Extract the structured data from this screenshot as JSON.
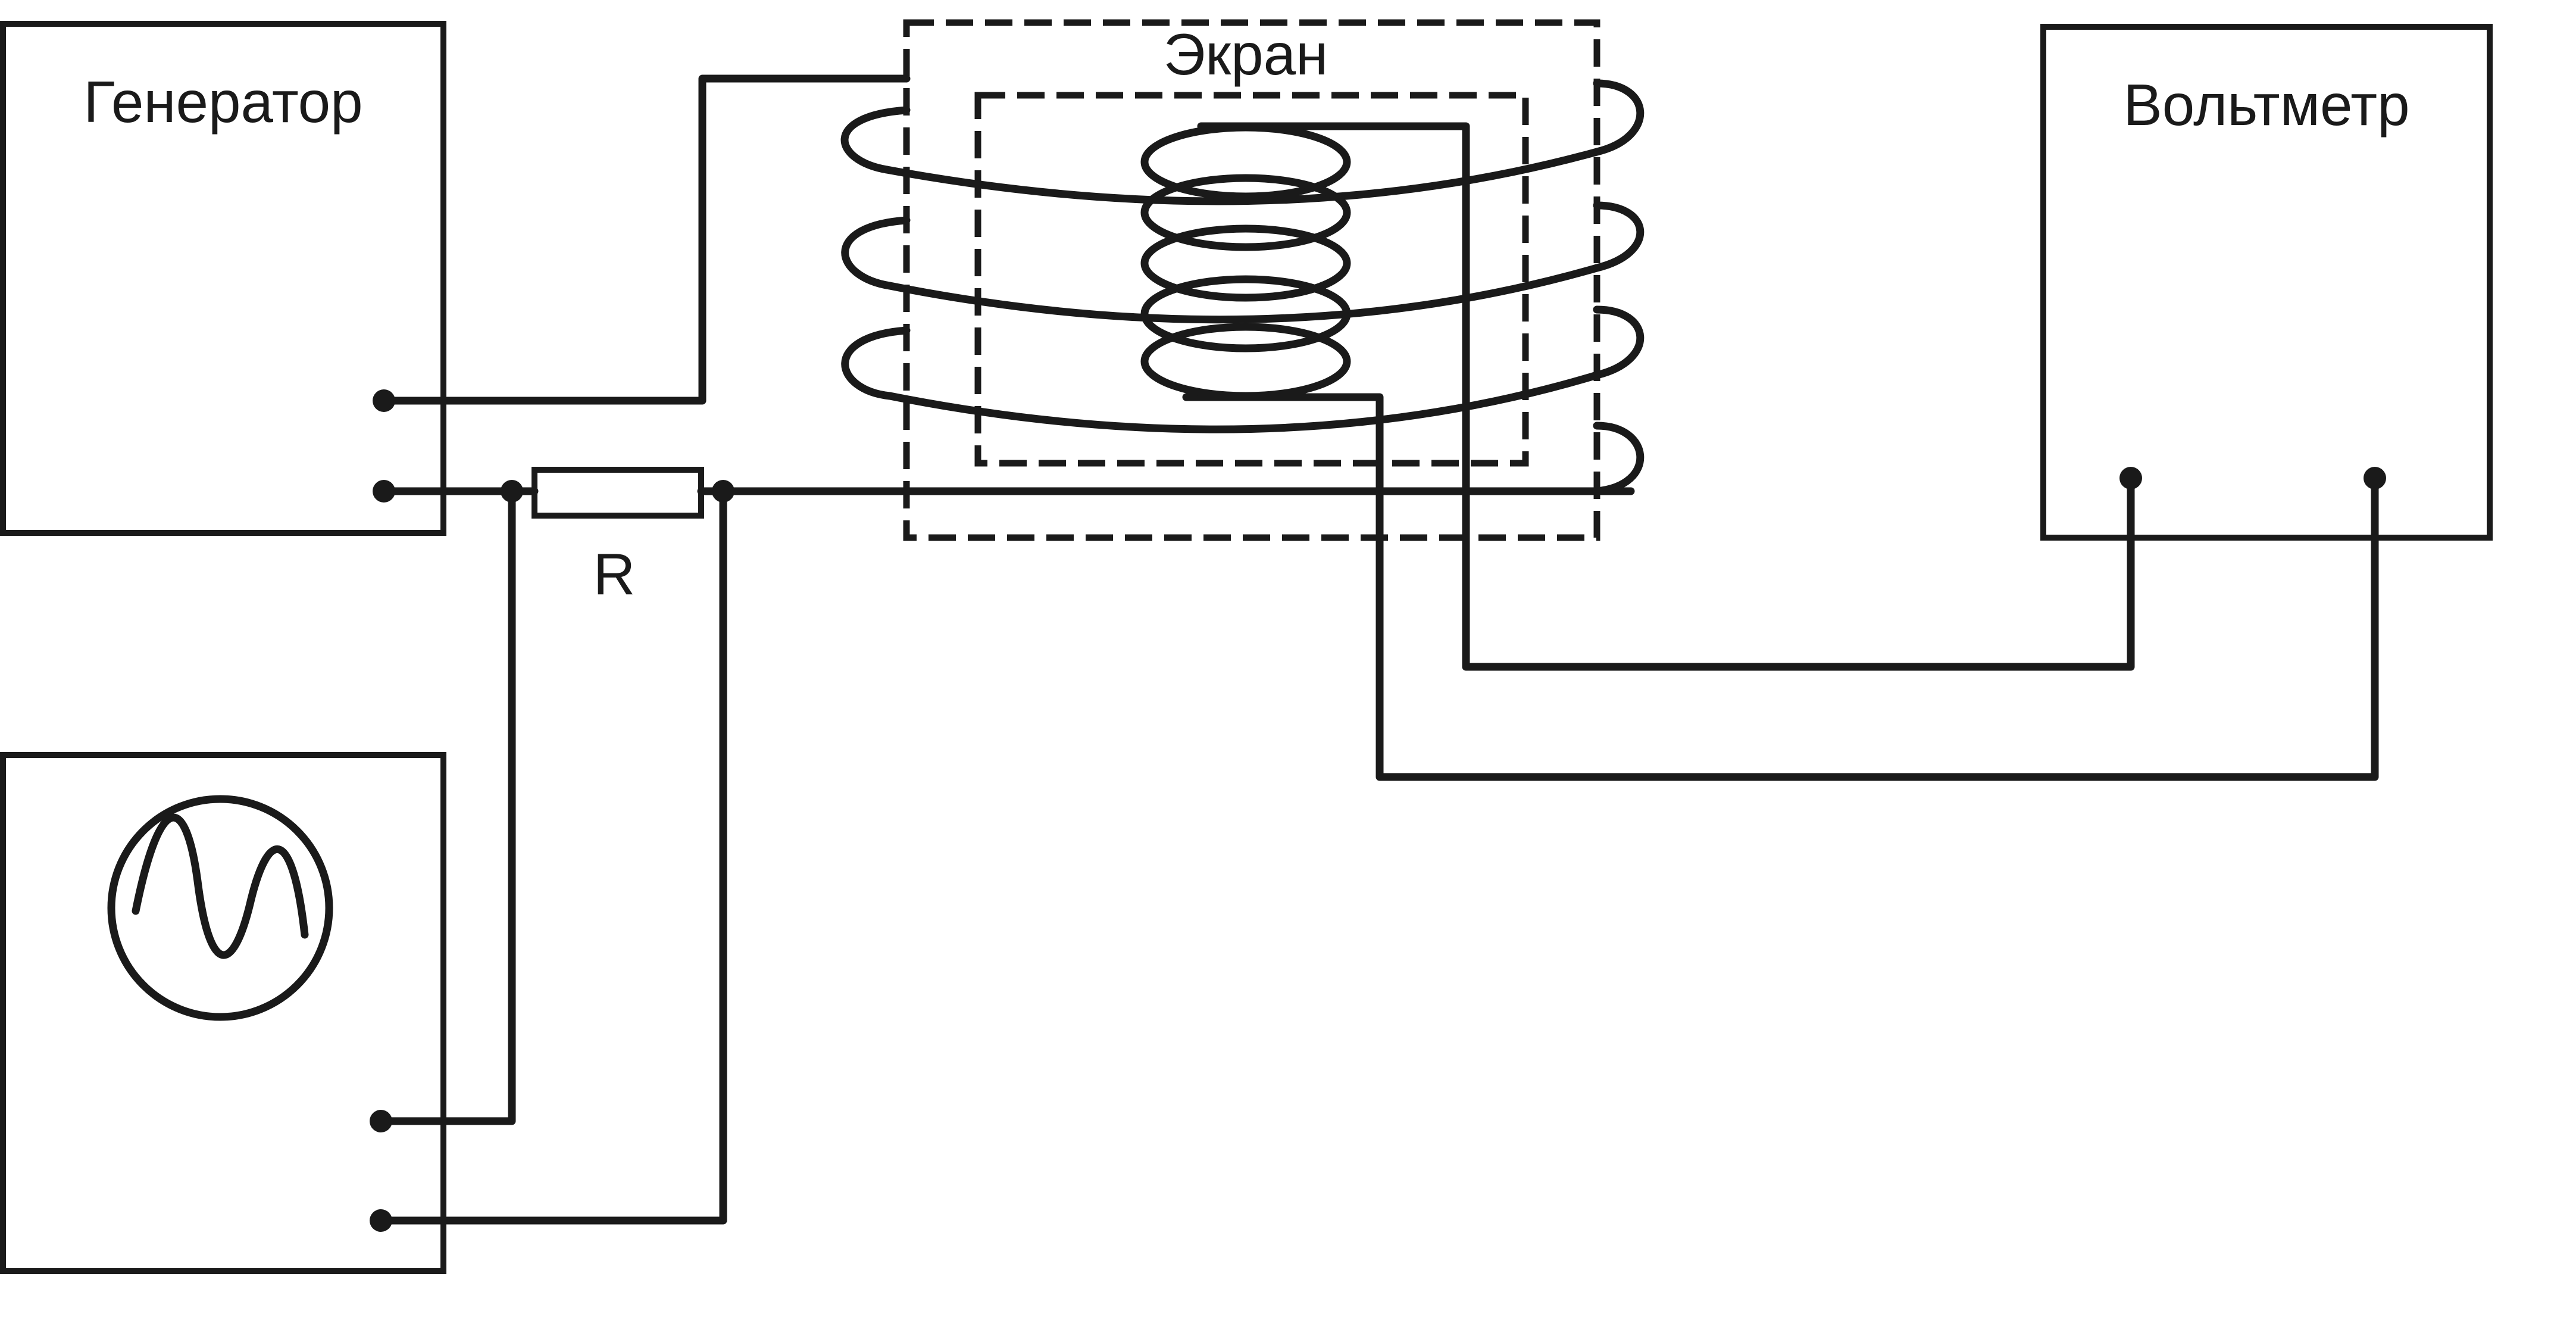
{
  "labels": {
    "generator": "Генератор",
    "screen": "Экран",
    "voltmeter": "Вольтметр",
    "resistor": "R"
  },
  "icons": {
    "oscilloscope": "sine-wave-icon"
  }
}
